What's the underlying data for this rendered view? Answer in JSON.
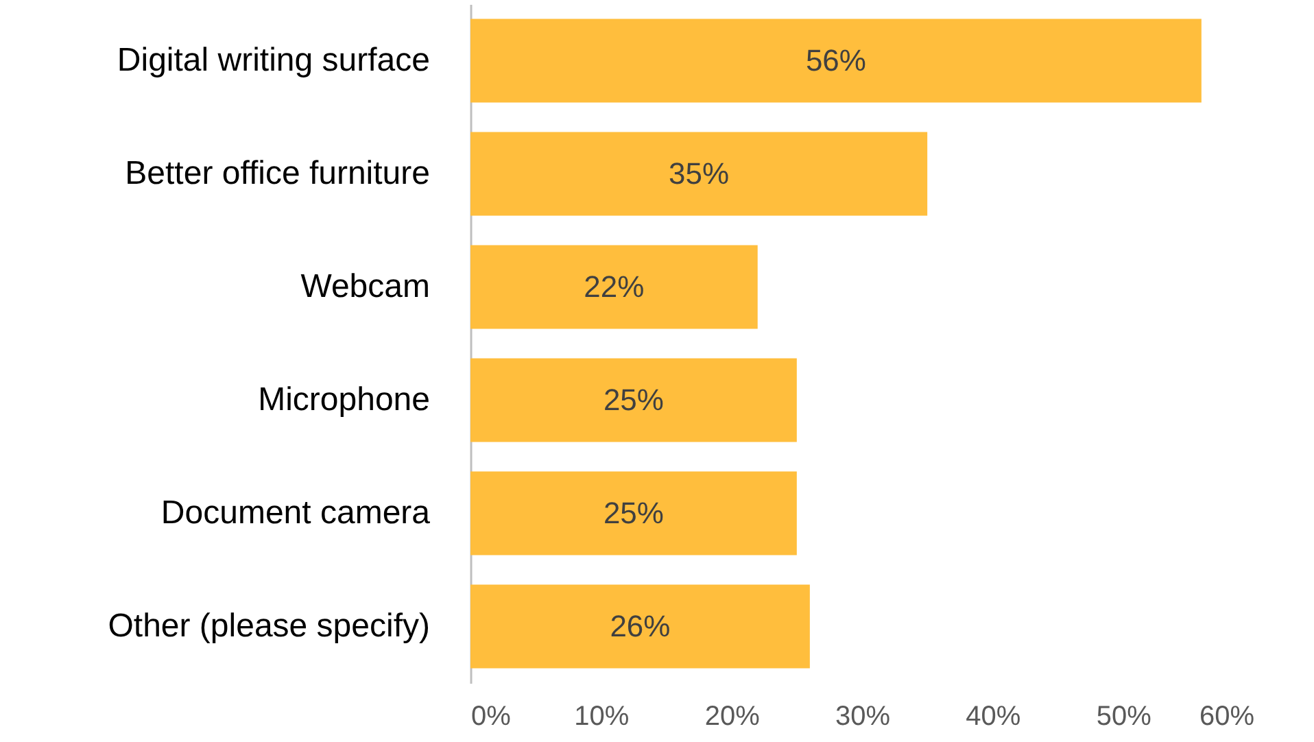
{
  "chart_data": {
    "type": "bar",
    "orientation": "horizontal",
    "categories": [
      "Digital writing surface",
      "Better office furniture",
      "Webcam",
      "Microphone",
      "Document camera",
      "Other (please specify)"
    ],
    "values": [
      56,
      35,
      22,
      25,
      25,
      26
    ],
    "value_labels": [
      "56%",
      "35%",
      "22%",
      "25%",
      "25%",
      "26%"
    ],
    "color": "#ffbe3d",
    "xlim": [
      0,
      60
    ],
    "xticks": [
      {
        "value": 0,
        "label": "0%"
      },
      {
        "value": 10,
        "label": "10%"
      },
      {
        "value": 20,
        "label": "20%"
      },
      {
        "value": 30,
        "label": "30%"
      },
      {
        "value": 40,
        "label": "40%"
      },
      {
        "value": 50,
        "label": "50%"
      },
      {
        "value": 60,
        "label": "60%"
      }
    ]
  }
}
